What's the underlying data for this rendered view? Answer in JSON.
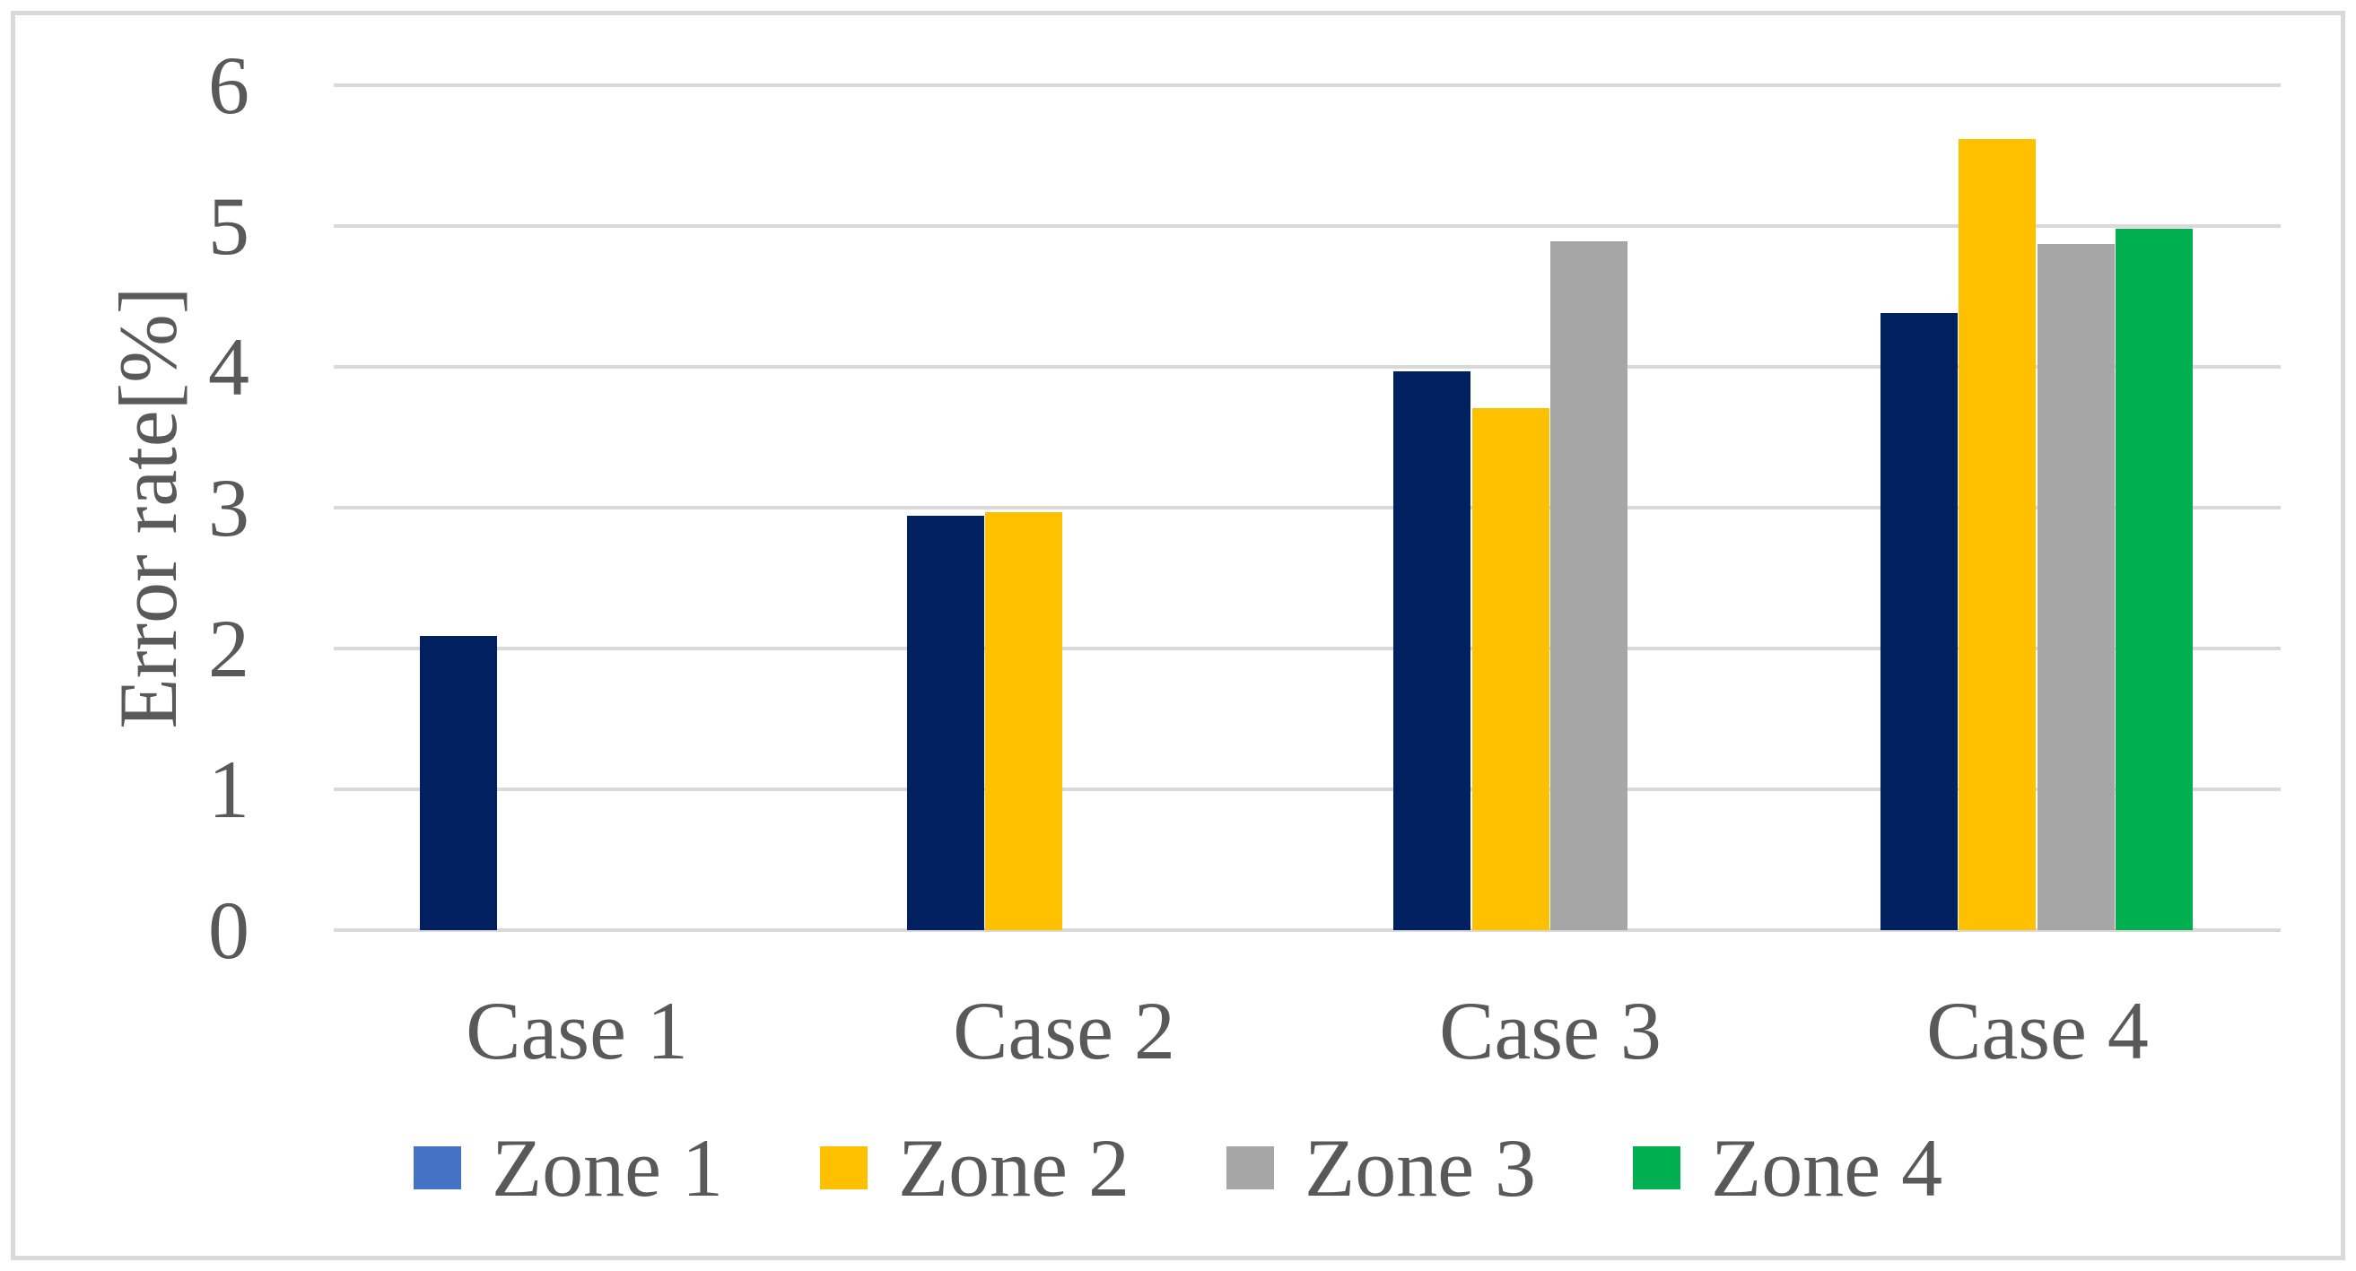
{
  "chart_data": {
    "type": "bar",
    "title": "",
    "categories": [
      "Case 1",
      "Case 2",
      "Case 3",
      "Case 4"
    ],
    "series": [
      {
        "name": "Zone 1",
        "legend_color": "#4472C4",
        "bar_color": "#002060",
        "values": [
          2.09,
          2.94,
          3.97,
          4.38
        ]
      },
      {
        "name": "Zone 2",
        "legend_color": "#FFC000",
        "bar_color": "#FFC000",
        "values": [
          null,
          2.97,
          3.71,
          5.62
        ]
      },
      {
        "name": "Zone 3",
        "legend_color": "#A6A6A6",
        "bar_color": "#A6A6A6",
        "values": [
          null,
          null,
          4.89,
          4.87
        ]
      },
      {
        "name": "Zone 4",
        "legend_color": "#00B050",
        "bar_color": "#00B050",
        "values": [
          null,
          null,
          null,
          4.98
        ]
      }
    ],
    "xlabel": "",
    "ylabel": "Error rate[%]",
    "ylim": [
      0,
      6
    ],
    "y_ticks": [
      0,
      1,
      2,
      3,
      4,
      5,
      6
    ],
    "grid": true,
    "legend_position": "bottom"
  },
  "colors": {
    "text": "#595959",
    "gridline": "#D9D9D9",
    "axis_line": "#D9D9D9",
    "border": "#D9D9D9",
    "background": "#FFFFFF"
  }
}
